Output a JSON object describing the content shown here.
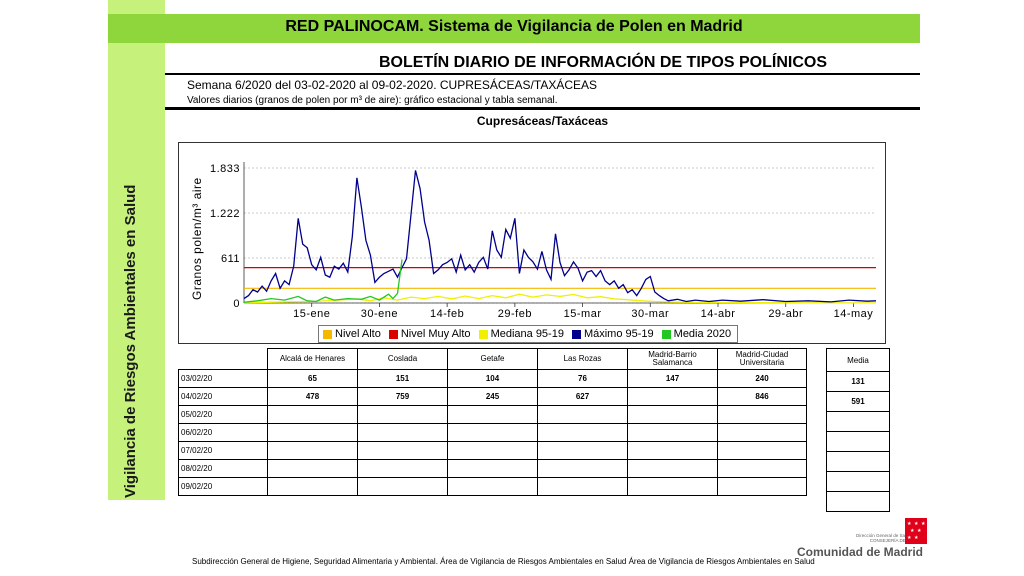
{
  "sidebar": {
    "text": "Vigilancia de Riesgos Ambientales en Salud"
  },
  "header": {
    "title": "RED PALINOCAM. Sistema de Vigilancia de Polen en Madrid",
    "bulletin": "BOLETÍN DIARIO DE INFORMACIÓN DE TIPOS POLÍNICOS",
    "week": "Semana 6/2020 del 03-02-2020 al 09-02-2020. CUPRESÁCEAS/TAXÁCEAS",
    "subline": "Valores diarios (granos de polen por m³ de aire): gráfico estacional y tabla semanal."
  },
  "chart_data": {
    "type": "line",
    "title": "Cupresáceas/Taxáceas",
    "ylabel": "Granos polen/m³ aire",
    "ylim": [
      0,
      1833
    ],
    "yticks": [
      {
        "value": 0,
        "label": "0"
      },
      {
        "value": 611,
        "label": "611"
      },
      {
        "value": 1222,
        "label": "1.222"
      },
      {
        "value": 1833,
        "label": "1.833"
      }
    ],
    "xlim": [
      0,
      140
    ],
    "xticks": [
      {
        "value": 15,
        "label": "15-ene"
      },
      {
        "value": 30,
        "label": "30-ene"
      },
      {
        "value": 45,
        "label": "14-feb"
      },
      {
        "value": 60,
        "label": "29-feb"
      },
      {
        "value": 75,
        "label": "15-mar"
      },
      {
        "value": 90,
        "label": "30-mar"
      },
      {
        "value": 105,
        "label": "14-abr"
      },
      {
        "value": 120,
        "label": "29-abr"
      },
      {
        "value": 135,
        "label": "14-may"
      }
    ],
    "grid": true,
    "legend_position": "bottom",
    "series": [
      {
        "name": "Nivel Alto",
        "color": "#f5b700",
        "values": [
          {
            "x": 0,
            "y": 200
          },
          {
            "x": 140,
            "y": 200
          }
        ]
      },
      {
        "name": "Nivel Muy Alto",
        "color": "#d90000",
        "values": [
          {
            "x": 0,
            "y": 480
          },
          {
            "x": 140,
            "y": 480
          }
        ]
      },
      {
        "name": "Mediana 95-19",
        "color": "#f0f000",
        "values": [
          {
            "x": 0,
            "y": 5
          },
          {
            "x": 5,
            "y": 10
          },
          {
            "x": 10,
            "y": 15
          },
          {
            "x": 15,
            "y": 20
          },
          {
            "x": 20,
            "y": 35
          },
          {
            "x": 25,
            "y": 55
          },
          {
            "x": 28,
            "y": 30
          },
          {
            "x": 31,
            "y": 70
          },
          {
            "x": 34,
            "y": 40
          },
          {
            "x": 37,
            "y": 80
          },
          {
            "x": 40,
            "y": 60
          },
          {
            "x": 43,
            "y": 90
          },
          {
            "x": 46,
            "y": 55
          },
          {
            "x": 49,
            "y": 95
          },
          {
            "x": 52,
            "y": 60
          },
          {
            "x": 55,
            "y": 100
          },
          {
            "x": 58,
            "y": 70
          },
          {
            "x": 61,
            "y": 120
          },
          {
            "x": 64,
            "y": 80
          },
          {
            "x": 67,
            "y": 110
          },
          {
            "x": 70,
            "y": 90
          },
          {
            "x": 73,
            "y": 115
          },
          {
            "x": 76,
            "y": 70
          },
          {
            "x": 79,
            "y": 85
          },
          {
            "x": 82,
            "y": 55
          },
          {
            "x": 85,
            "y": 45
          },
          {
            "x": 88,
            "y": 30
          },
          {
            "x": 91,
            "y": 20
          },
          {
            "x": 95,
            "y": 12
          },
          {
            "x": 100,
            "y": 8
          },
          {
            "x": 110,
            "y": 5
          },
          {
            "x": 125,
            "y": 3
          },
          {
            "x": 140,
            "y": 2
          }
        ]
      },
      {
        "name": "Máximo 95-19",
        "color": "#00008c",
        "values": [
          {
            "x": 0,
            "y": 60
          },
          {
            "x": 1,
            "y": 100
          },
          {
            "x": 2,
            "y": 180
          },
          {
            "x": 3,
            "y": 150
          },
          {
            "x": 4,
            "y": 230
          },
          {
            "x": 5,
            "y": 160
          },
          {
            "x": 6,
            "y": 300
          },
          {
            "x": 7,
            "y": 400
          },
          {
            "x": 8,
            "y": 200
          },
          {
            "x": 9,
            "y": 300
          },
          {
            "x": 10,
            "y": 250
          },
          {
            "x": 11,
            "y": 500
          },
          {
            "x": 12,
            "y": 1150
          },
          {
            "x": 13,
            "y": 800
          },
          {
            "x": 14,
            "y": 750
          },
          {
            "x": 15,
            "y": 520
          },
          {
            "x": 16,
            "y": 450
          },
          {
            "x": 17,
            "y": 620
          },
          {
            "x": 18,
            "y": 380
          },
          {
            "x": 19,
            "y": 350
          },
          {
            "x": 20,
            "y": 500
          },
          {
            "x": 21,
            "y": 460
          },
          {
            "x": 22,
            "y": 540
          },
          {
            "x": 23,
            "y": 420
          },
          {
            "x": 24,
            "y": 900
          },
          {
            "x": 25,
            "y": 1700
          },
          {
            "x": 26,
            "y": 1300
          },
          {
            "x": 27,
            "y": 850
          },
          {
            "x": 28,
            "y": 650
          },
          {
            "x": 29,
            "y": 280
          },
          {
            "x": 30,
            "y": 350
          },
          {
            "x": 31,
            "y": 400
          },
          {
            "x": 32,
            "y": 430
          },
          {
            "x": 33,
            "y": 460
          },
          {
            "x": 34,
            "y": 350
          },
          {
            "x": 35,
            "y": 480
          },
          {
            "x": 36,
            "y": 600
          },
          {
            "x": 37,
            "y": 1200
          },
          {
            "x": 38,
            "y": 1800
          },
          {
            "x": 39,
            "y": 1550
          },
          {
            "x": 40,
            "y": 1100
          },
          {
            "x": 41,
            "y": 850
          },
          {
            "x": 42,
            "y": 400
          },
          {
            "x": 43,
            "y": 450
          },
          {
            "x": 44,
            "y": 520
          },
          {
            "x": 45,
            "y": 550
          },
          {
            "x": 46,
            "y": 600
          },
          {
            "x": 47,
            "y": 420
          },
          {
            "x": 48,
            "y": 650
          },
          {
            "x": 49,
            "y": 450
          },
          {
            "x": 50,
            "y": 520
          },
          {
            "x": 51,
            "y": 420
          },
          {
            "x": 52,
            "y": 550
          },
          {
            "x": 53,
            "y": 620
          },
          {
            "x": 54,
            "y": 460
          },
          {
            "x": 55,
            "y": 980
          },
          {
            "x": 56,
            "y": 720
          },
          {
            "x": 57,
            "y": 620
          },
          {
            "x": 58,
            "y": 1000
          },
          {
            "x": 59,
            "y": 880
          },
          {
            "x": 60,
            "y": 1150
          },
          {
            "x": 61,
            "y": 400
          },
          {
            "x": 62,
            "y": 720
          },
          {
            "x": 63,
            "y": 620
          },
          {
            "x": 64,
            "y": 560
          },
          {
            "x": 65,
            "y": 460
          },
          {
            "x": 66,
            "y": 700
          },
          {
            "x": 67,
            "y": 450
          },
          {
            "x": 68,
            "y": 320
          },
          {
            "x": 69,
            "y": 940
          },
          {
            "x": 70,
            "y": 550
          },
          {
            "x": 71,
            "y": 370
          },
          {
            "x": 72,
            "y": 450
          },
          {
            "x": 73,
            "y": 560
          },
          {
            "x": 74,
            "y": 470
          },
          {
            "x": 75,
            "y": 300
          },
          {
            "x": 76,
            "y": 420
          },
          {
            "x": 77,
            "y": 440
          },
          {
            "x": 78,
            "y": 360
          },
          {
            "x": 79,
            "y": 440
          },
          {
            "x": 80,
            "y": 300
          },
          {
            "x": 81,
            "y": 250
          },
          {
            "x": 82,
            "y": 300
          },
          {
            "x": 83,
            "y": 200
          },
          {
            "x": 84,
            "y": 250
          },
          {
            "x": 85,
            "y": 140
          },
          {
            "x": 86,
            "y": 180
          },
          {
            "x": 87,
            "y": 100
          },
          {
            "x": 88,
            "y": 200
          },
          {
            "x": 89,
            "y": 320
          },
          {
            "x": 90,
            "y": 360
          },
          {
            "x": 91,
            "y": 150
          },
          {
            "x": 92,
            "y": 100
          },
          {
            "x": 93,
            "y": 60
          },
          {
            "x": 94,
            "y": 30
          },
          {
            "x": 96,
            "y": 50
          },
          {
            "x": 98,
            "y": 20
          },
          {
            "x": 100,
            "y": 40
          },
          {
            "x": 103,
            "y": 20
          },
          {
            "x": 106,
            "y": 40
          },
          {
            "x": 110,
            "y": 25
          },
          {
            "x": 115,
            "y": 45
          },
          {
            "x": 120,
            "y": 20
          },
          {
            "x": 125,
            "y": 30
          },
          {
            "x": 130,
            "y": 15
          },
          {
            "x": 134,
            "y": 40
          },
          {
            "x": 138,
            "y": 25
          },
          {
            "x": 140,
            "y": 30
          }
        ]
      },
      {
        "name": "Media 2020",
        "color": "#22c722",
        "values": [
          {
            "x": 0,
            "y": 10
          },
          {
            "x": 3,
            "y": 30
          },
          {
            "x": 6,
            "y": 60
          },
          {
            "x": 9,
            "y": 40
          },
          {
            "x": 12,
            "y": 90
          },
          {
            "x": 14,
            "y": 30
          },
          {
            "x": 16,
            "y": 20
          },
          {
            "x": 18,
            "y": 80
          },
          {
            "x": 20,
            "y": 40
          },
          {
            "x": 23,
            "y": 60
          },
          {
            "x": 26,
            "y": 50
          },
          {
            "x": 28,
            "y": 90
          },
          {
            "x": 30,
            "y": 40
          },
          {
            "x": 32,
            "y": 120
          },
          {
            "x": 33,
            "y": 60
          },
          {
            "x": 34,
            "y": 131
          },
          {
            "x": 35,
            "y": 591
          }
        ]
      }
    ]
  },
  "table": {
    "headers": [
      "Alcalá de Henares",
      "Coslada",
      "Getafe",
      "Las Rozas",
      "Madrid-Barrio Salamanca",
      "Madrid-Ciudad Universitaria"
    ],
    "rows": [
      {
        "date": "03/02/20",
        "values": [
          "65",
          "151",
          "104",
          "76",
          "147",
          "240"
        ]
      },
      {
        "date": "04/02/20",
        "values": [
          "478",
          "759",
          "245",
          "627",
          "",
          "846"
        ]
      },
      {
        "date": "05/02/20",
        "values": [
          "",
          "",
          "",
          "",
          "",
          ""
        ]
      },
      {
        "date": "06/02/20",
        "values": [
          "",
          "",
          "",
          "",
          "",
          ""
        ]
      },
      {
        "date": "07/02/20",
        "values": [
          "",
          "",
          "",
          "",
          "",
          ""
        ]
      },
      {
        "date": "08/02/20",
        "values": [
          "",
          "",
          "",
          "",
          "",
          ""
        ]
      },
      {
        "date": "09/02/20",
        "values": [
          "",
          "",
          "",
          "",
          "",
          ""
        ]
      }
    ]
  },
  "media": {
    "header": "Media",
    "values": [
      "131",
      "591",
      "",
      "",
      "",
      "",
      ""
    ]
  },
  "footer": {
    "text": "Subdirección General de Higiene, Seguridad Alimentaria y Ambiental. Área de Vigilancia de Riesgos Ambientales en Salud Área de Vigilancia de Riesgos Ambientales en Salud",
    "logo": "Comunidad de Madrid",
    "logo_small_1": "Dirección General de Salud Pública",
    "logo_small_2": "CONSEJERÍA DE SANIDAD"
  }
}
